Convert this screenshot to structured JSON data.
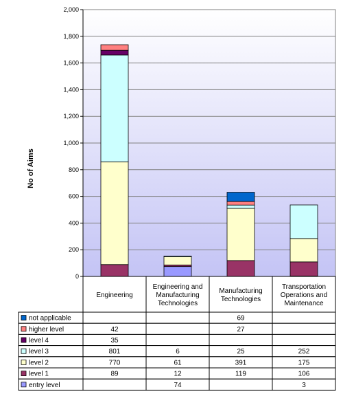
{
  "chart_data": {
    "type": "bar",
    "stacked": true,
    "ylabel": "No of Aims",
    "ylim": [
      0,
      2000
    ],
    "yticks": [
      "0",
      "200",
      "400",
      "600",
      "800",
      "1,000",
      "1,200",
      "1,400",
      "1,600",
      "1,800",
      "2,000"
    ],
    "categories": [
      [
        "Engineering"
      ],
      [
        "Engineering and",
        "Manufacturing",
        "Technologies"
      ],
      [
        "Manufacturing",
        "Technologies"
      ],
      [
        "Transportation",
        "Operations and",
        "Maintenance"
      ]
    ],
    "series": [
      {
        "name": "entry level",
        "color": "#9999ff",
        "values": [
          null,
          74,
          null,
          3
        ]
      },
      {
        "name": "level 1",
        "color": "#993366",
        "values": [
          89,
          12,
          119,
          106
        ]
      },
      {
        "name": "level 2",
        "color": "#ffffcc",
        "values": [
          770,
          61,
          391,
          175
        ]
      },
      {
        "name": "level 3",
        "color": "#ccffff",
        "values": [
          801,
          6,
          25,
          252
        ]
      },
      {
        "name": "level 4",
        "color": "#660066",
        "values": [
          35,
          null,
          null,
          null
        ]
      },
      {
        "name": "higher level",
        "color": "#ff8080",
        "values": [
          42,
          null,
          27,
          null
        ]
      },
      {
        "name": "not applicable",
        "color": "#0066cc",
        "values": [
          null,
          null,
          69,
          null
        ]
      }
    ],
    "table_order": [
      "not applicable",
      "higher level",
      "level 4",
      "level 3",
      "level 2",
      "level 1",
      "entry level"
    ],
    "plot_background": "#ccccff",
    "grid": true,
    "legend": "data-table"
  }
}
